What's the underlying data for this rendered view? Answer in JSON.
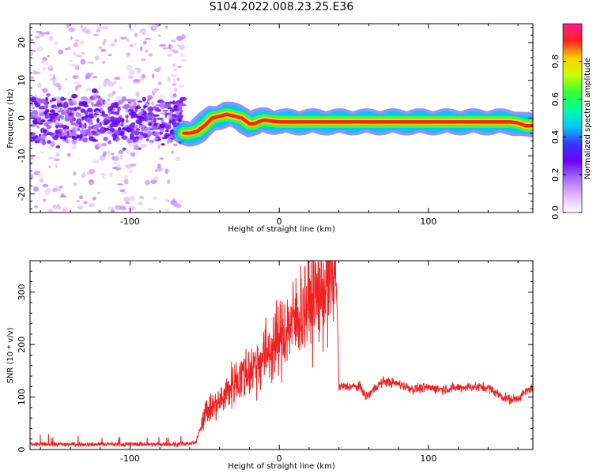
{
  "title": "S104.2022.008.23.25.E36",
  "chart_data": [
    {
      "type": "heatmap",
      "title": "S104.2022.008.23.25.E36",
      "xlabel": "Height of straight line (km)",
      "ylabel": "Frequency (Hz)",
      "xlim": [
        -167,
        170
      ],
      "ylim": [
        -25,
        25
      ],
      "x_ticks": [
        -100,
        0,
        100
      ],
      "y_ticks": [
        -20,
        -10,
        0,
        10,
        20
      ],
      "colorbar": {
        "label": "Normalized spectral amplitude",
        "range": [
          0,
          1
        ],
        "ticks": [
          "0.0",
          "0.2",
          "0.4",
          "0.6",
          "0.8"
        ],
        "colors": [
          "#ffffff",
          "#e2b6ff",
          "#a56cf5",
          "#6a00ff",
          "#3a35ff",
          "#00c8ff",
          "#00ff9c",
          "#33ff33",
          "#c8ff00",
          "#ffd000",
          "#ff2020",
          "#ff1a8c"
        ]
      },
      "ridge": {
        "x": [
          -64,
          -60,
          -55,
          -50,
          -45,
          -40,
          -35,
          -30,
          -25,
          -20,
          -17,
          -14,
          -10,
          -5,
          0,
          10,
          20,
          40,
          60,
          80,
          100,
          120,
          140,
          155,
          160,
          165,
          170
        ],
        "freq": [
          -4,
          -4,
          -3.5,
          -2,
          0,
          0.5,
          1,
          0.5,
          0,
          -1.5,
          -1.5,
          -1,
          -0.5,
          -0.8,
          -1,
          -1,
          -1,
          -1,
          -1,
          -1,
          -1,
          -1,
          -1,
          -1,
          -1.3,
          -2,
          -2
        ]
      },
      "noise_region_x": [
        -167,
        -64
      ],
      "noise_core_freq": [
        -6,
        5
      ]
    },
    {
      "type": "line",
      "xlabel": "Height of straight line (km)",
      "ylabel": "SNR (10 * v/v)",
      "xlim": [
        -167,
        170
      ],
      "ylim": [
        0,
        360
      ],
      "x_ticks": [
        -100,
        0,
        100
      ],
      "y_ticks": [
        0,
        100,
        200,
        300
      ],
      "color": "#ee2222",
      "series": [
        {
          "x": [
            -167,
            -150,
            -130,
            -110,
            -90,
            -70,
            -56,
            -53,
            -50,
            -45,
            -40,
            -35,
            -30,
            -25,
            -20,
            -15,
            -10,
            -5,
            0,
            5,
            10,
            15,
            20,
            25,
            30,
            35,
            38,
            39,
            40,
            45,
            50,
            55,
            58,
            60,
            65,
            70,
            80,
            90,
            100,
            110,
            120,
            130,
            140,
            150,
            155,
            160,
            170
          ],
          "y": [
            10,
            10,
            10,
            10,
            10,
            10,
            12,
            40,
            70,
            80,
            90,
            110,
            130,
            140,
            150,
            165,
            180,
            195,
            210,
            230,
            245,
            265,
            285,
            295,
            305,
            320,
            330,
            250,
            120,
            120,
            120,
            118,
            100,
            105,
            120,
            130,
            125,
            115,
            118,
            115,
            118,
            120,
            118,
            100,
            95,
            98,
            120
          ]
        }
      ]
    }
  ]
}
